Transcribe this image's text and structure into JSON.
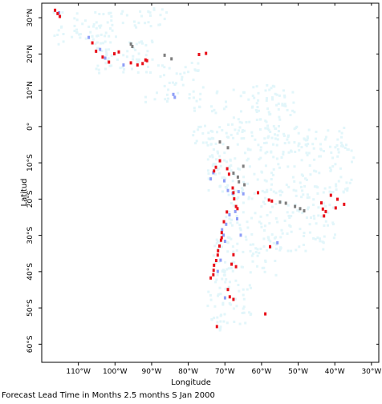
{
  "map": {
    "x_axis_title": "Longitude",
    "y_axis_title": "Latitud",
    "lon_range": [
      -120,
      -28
    ],
    "lat_range": [
      -65,
      34
    ],
    "lon_ticks": [
      {
        "value": -110,
        "label": "110°W"
      },
      {
        "value": -100,
        "label": "100°W"
      },
      {
        "value": -90,
        "label": "90°W"
      },
      {
        "value": -80,
        "label": "80°W"
      },
      {
        "value": -70,
        "label": "70°W"
      },
      {
        "value": -60,
        "label": "60°W"
      },
      {
        "value": -50,
        "label": "50°W"
      },
      {
        "value": -40,
        "label": "40°W"
      },
      {
        "value": -30,
        "label": "30°W"
      }
    ],
    "lat_ticks": [
      {
        "value": 30,
        "label": "30°N"
      },
      {
        "value": 20,
        "label": "20°N"
      },
      {
        "value": 10,
        "label": "10°N"
      },
      {
        "value": 0,
        "label": "0°"
      },
      {
        "value": -10,
        "label": "10°S"
      },
      {
        "value": -20,
        "label": "20°S"
      },
      {
        "value": -30,
        "label": "30°S"
      },
      {
        "value": -40,
        "label": "40°S"
      },
      {
        "value": -50,
        "label": "50°S"
      },
      {
        "value": -60,
        "label": "60°S"
      }
    ],
    "colors": {
      "background_cells": "#e2f6fa",
      "blue": "#8f9ff7",
      "red": "#e8101a",
      "gray": "#7f7f7f",
      "frame": "#000000"
    },
    "lead_time_cells": {
      "red": [
        [
          -116.7,
          32.5
        ],
        [
          -116,
          31.6
        ],
        [
          -115.4,
          30.8
        ],
        [
          -106.5,
          23.5
        ],
        [
          -105.5,
          21.2
        ],
        [
          -103.7,
          19.6
        ],
        [
          -102,
          18.2
        ],
        [
          -100.5,
          20.5
        ],
        [
          -99.3,
          21
        ],
        [
          -96,
          18
        ],
        [
          -94.2,
          17.4
        ],
        [
          -92.8,
          17.8
        ],
        [
          -92,
          18.8
        ],
        [
          -91.6,
          18.6
        ],
        [
          -77.4,
          20.3
        ],
        [
          -75.5,
          20.6
        ],
        [
          -73.3,
          -11.8
        ],
        [
          -72.8,
          -10.8
        ],
        [
          -71.7,
          -9
        ],
        [
          -69.7,
          -11.2
        ],
        [
          -69.2,
          -12.7
        ],
        [
          -68.2,
          -16.5
        ],
        [
          -68,
          -17.8
        ],
        [
          -67.8,
          -19.5
        ],
        [
          -67.3,
          -21.6
        ],
        [
          -66.9,
          -22.2
        ],
        [
          -69.8,
          -23.1
        ],
        [
          -70.6,
          -25.8
        ],
        [
          -71.2,
          -28.8
        ],
        [
          -71.2,
          -30.2
        ],
        [
          -71.4,
          -30.9
        ],
        [
          -71.8,
          -32.5
        ],
        [
          -72.2,
          -33.8
        ],
        [
          -72.3,
          -35
        ],
        [
          -72.7,
          -36.5
        ],
        [
          -73.3,
          -37.8
        ],
        [
          -73.4,
          -39.2
        ],
        [
          -73.5,
          -40.4
        ],
        [
          -74.2,
          -41.3
        ],
        [
          -68,
          -34.9
        ],
        [
          -68.5,
          -37.5
        ],
        [
          -67.3,
          -38.2
        ],
        [
          -69.5,
          -44.5
        ],
        [
          -69,
          -46.5
        ],
        [
          -68,
          -47.2
        ],
        [
          -58,
          -32.7
        ],
        [
          -59.3,
          -51.2
        ],
        [
          -72.5,
          -54.7
        ],
        [
          -61.3,
          -17.8
        ],
        [
          -58.3,
          -19.8
        ],
        [
          -57.5,
          -20.1
        ],
        [
          -44,
          -20.6
        ],
        [
          -43.6,
          -22.3
        ],
        [
          -42.8,
          -23
        ],
        [
          -43.3,
          -24.2
        ],
        [
          -40.1,
          -22
        ],
        [
          -39.6,
          -19.6
        ],
        [
          -41.4,
          -18.5
        ],
        [
          -37.8,
          -21
        ]
      ],
      "blue": [
        [
          -115.6,
          31.8
        ],
        [
          -107.5,
          25
        ],
        [
          -104.4,
          21.7
        ],
        [
          -103,
          19.3
        ],
        [
          -98,
          17.4
        ],
        [
          -84.4,
          9.3
        ],
        [
          -84,
          8.5
        ],
        [
          -74.2,
          -14
        ],
        [
          -73.5,
          -12.3
        ],
        [
          -70.5,
          -14.5
        ],
        [
          -69.5,
          -17.2
        ],
        [
          -69.1,
          -23.9
        ],
        [
          -70,
          -26.5
        ],
        [
          -71.1,
          -28
        ],
        [
          -70.7,
          -29.5
        ],
        [
          -70.3,
          -31.2
        ],
        [
          -71.5,
          -36.4
        ],
        [
          -66.6,
          -17.5
        ],
        [
          -65.3,
          -18.1
        ],
        [
          -68.2,
          -18
        ],
        [
          -67.5,
          -23
        ],
        [
          -67,
          -25
        ],
        [
          -66,
          -29.5
        ],
        [
          -56,
          -31.6
        ],
        [
          -72.3,
          -39.5
        ],
        [
          -70.3,
          -46.8
        ]
      ],
      "gray": [
        [
          -96,
          23.2
        ],
        [
          -95.6,
          22.5
        ],
        [
          -86.8,
          20.1
        ],
        [
          -84.9,
          19.1
        ],
        [
          -71.7,
          -3.8
        ],
        [
          -69.5,
          -5.4
        ],
        [
          -68,
          -12.4
        ],
        [
          -66.8,
          -13.5
        ],
        [
          -65,
          -15.6
        ],
        [
          -66.5,
          -14.8
        ],
        [
          -65.3,
          -10.5
        ],
        [
          -55.3,
          -20.4
        ],
        [
          -53.7,
          -20.7
        ],
        [
          -51.2,
          -21.6
        ],
        [
          -49.8,
          -22.2
        ],
        [
          -48.7,
          -22.8
        ]
      ]
    }
  },
  "caption": "Forecast Lead Time in Months 2.5 months S Jan 2000"
}
